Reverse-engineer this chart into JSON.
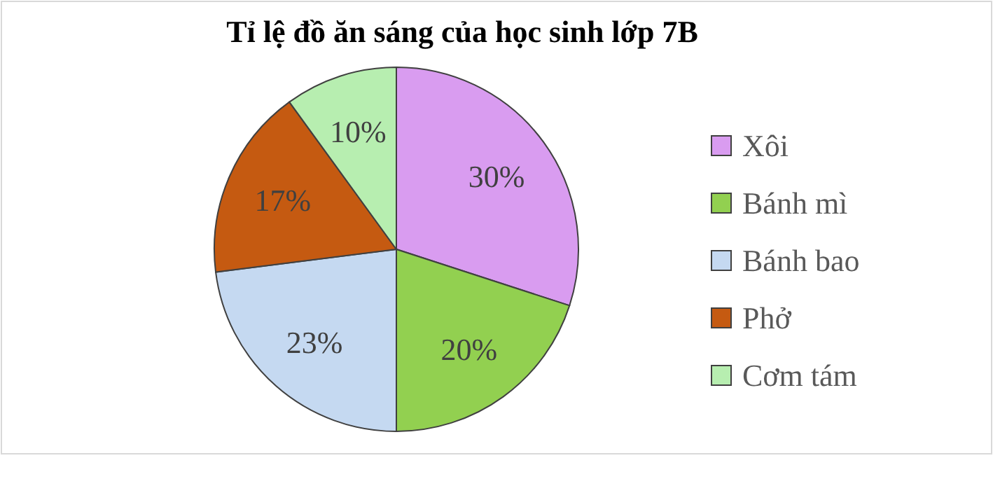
{
  "chart_data": {
    "type": "pie",
    "title": "Tỉ lệ đồ ăn sáng của học sinh lớp 7B",
    "categories": [
      "Xôi",
      "Bánh mì",
      "Bánh bao",
      "Phở",
      "Cơm tám"
    ],
    "values": [
      30,
      20,
      23,
      17,
      10
    ],
    "value_labels": [
      "30%",
      "20%",
      "23%",
      "17%",
      "10%"
    ],
    "colors": [
      "#d99cf0",
      "#92d050",
      "#c5d9f1",
      "#c55a11",
      "#b7eeb0"
    ],
    "legend": "right"
  }
}
